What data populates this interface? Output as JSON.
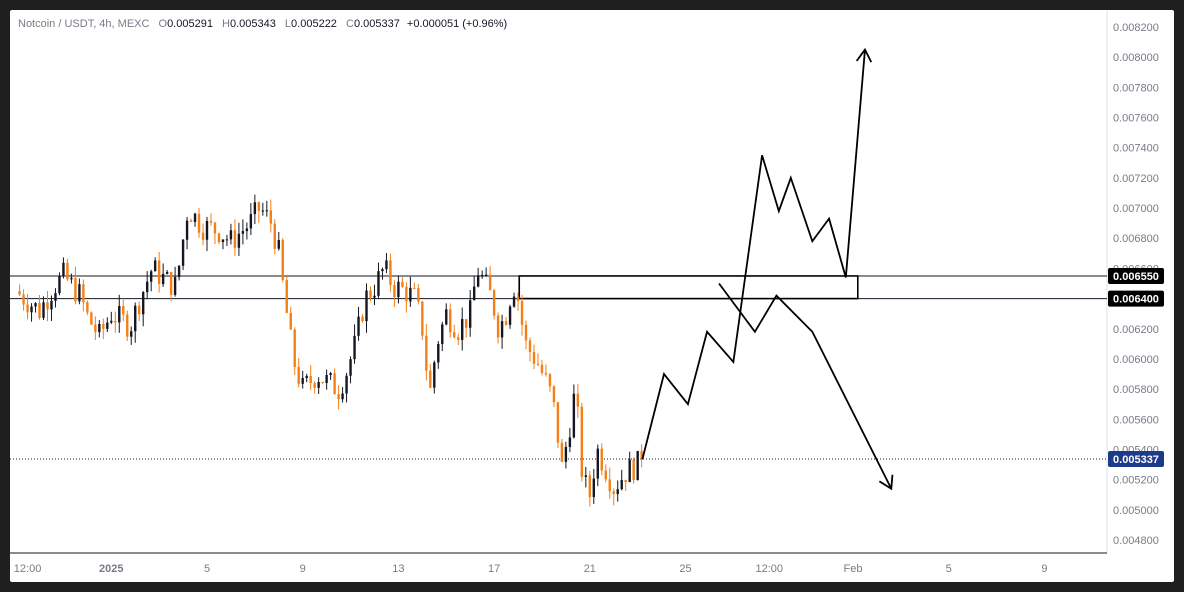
{
  "header": {
    "symbol_line": "Notcoin / USDT, 4h, MEXC",
    "ohlc": [
      {
        "key": "O",
        "value": "0.005291"
      },
      {
        "key": "H",
        "value": "0.005343"
      },
      {
        "key": "L",
        "value": "0.005222"
      },
      {
        "key": "C",
        "value": "0.005337"
      }
    ],
    "change": "+0.000051 (+0.96%)"
  },
  "colors": {
    "up": "#131722",
    "down": "#f57f17",
    "level_line": "#131722",
    "current_price_badge": "#1e3a8a",
    "level_badge": "#000000"
  },
  "chart_data": {
    "type": "candlestick",
    "y_axis_ticks": [
      "0.008200",
      "0.008000",
      "0.007800",
      "0.007600",
      "0.007400",
      "0.007200",
      "0.007000",
      "0.006800",
      "0.006600",
      "0.006400",
      "0.006200",
      "0.006000",
      "0.005800",
      "0.005600",
      "0.005400",
      "0.005200",
      "0.005000",
      "0.004800"
    ],
    "ylim": [
      0.0047,
      0.0083
    ],
    "x_axis_ticks": [
      {
        "label": "12:00",
        "day": 28.5
      },
      {
        "label": "2025",
        "day": 32
      },
      {
        "label": "5",
        "day": 36
      },
      {
        "label": "9",
        "day": 40
      },
      {
        "label": "13",
        "day": 44
      },
      {
        "label": "17",
        "day": 48
      },
      {
        "label": "21",
        "day": 52
      },
      {
        "label": "25",
        "day": 56
      },
      {
        "label": "12:00",
        "day": 59.5
      },
      {
        "label": "Feb",
        "day": 63
      },
      {
        "label": "5",
        "day": 67
      },
      {
        "label": "9",
        "day": 71
      }
    ],
    "xlim": [
      28,
      74
    ],
    "price_levels": [
      {
        "label": "0.006550",
        "value": 0.00655
      },
      {
        "label": "0.006400",
        "value": 0.0064
      }
    ],
    "current_price": {
      "label": "0.005337",
      "value": 0.005337
    },
    "zone": {
      "from_day": 49.05,
      "to_day": 63.2,
      "low": 0.0064,
      "high": 0.00655
    },
    "candle_anchors": [
      [
        28.0,
        0.00645
      ],
      [
        29.0,
        0.00632
      ],
      [
        29.6,
        0.00648
      ],
      [
        30.0,
        0.00655
      ],
      [
        30.7,
        0.00642
      ],
      [
        31.0,
        0.00628
      ],
      [
        31.5,
        0.00615
      ],
      [
        32.0,
        0.0063
      ],
      [
        32.8,
        0.00622
      ],
      [
        33.2,
        0.0064
      ],
      [
        33.7,
        0.0066
      ],
      [
        34.2,
        0.00653
      ],
      [
        34.7,
        0.00648
      ],
      [
        35.2,
        0.007
      ],
      [
        35.8,
        0.00688
      ],
      [
        36.5,
        0.00685
      ],
      [
        37.0,
        0.00678
      ],
      [
        37.8,
        0.0069
      ],
      [
        38.2,
        0.007
      ],
      [
        38.7,
        0.0069
      ],
      [
        39.0,
        0.0067
      ],
      [
        39.2,
        0.00645
      ],
      [
        39.6,
        0.006
      ],
      [
        40.0,
        0.0058
      ],
      [
        40.6,
        0.0059
      ],
      [
        41.0,
        0.00585
      ],
      [
        41.5,
        0.0058
      ],
      [
        41.8,
        0.0059
      ],
      [
        42.2,
        0.0061
      ],
      [
        42.6,
        0.0064
      ],
      [
        43.0,
        0.00648
      ],
      [
        43.4,
        0.0066
      ],
      [
        43.8,
        0.00648
      ],
      [
        44.3,
        0.00645
      ],
      [
        44.7,
        0.0064
      ],
      [
        45.0,
        0.0062
      ],
      [
        45.3,
        0.00575
      ],
      [
        45.6,
        0.0061
      ],
      [
        46.0,
        0.0063
      ],
      [
        46.5,
        0.0062
      ],
      [
        47.0,
        0.0063
      ],
      [
        47.3,
        0.0066
      ],
      [
        47.6,
        0.0065
      ],
      [
        47.9,
        0.0064
      ],
      [
        48.2,
        0.0062
      ],
      [
        48.5,
        0.0063
      ],
      [
        48.8,
        0.0065
      ],
      [
        49.0,
        0.0064
      ],
      [
        49.3,
        0.0061
      ],
      [
        49.8,
        0.00598
      ],
      [
        50.3,
        0.0058
      ],
      [
        50.6,
        0.0056
      ],
      [
        50.8,
        0.00525
      ],
      [
        51.1,
        0.0055
      ],
      [
        51.4,
        0.0058
      ],
      [
        51.7,
        0.0052
      ],
      [
        52.0,
        0.0051
      ],
      [
        52.3,
        0.0054
      ],
      [
        52.6,
        0.0053
      ],
      [
        53.0,
        0.00515
      ],
      [
        53.5,
        0.00525
      ],
      [
        54.0,
        0.0053
      ],
      [
        54.2,
        0.005337
      ]
    ],
    "projection_paths": [
      {
        "points": [
          [
            54.2,
            0.005337
          ],
          [
            55.1,
            0.0059
          ],
          [
            56.1,
            0.0057
          ],
          [
            56.9,
            0.00618
          ],
          [
            58.0,
            0.00598
          ],
          [
            59.2,
            0.00735
          ],
          [
            59.9,
            0.00698
          ],
          [
            60.4,
            0.0072
          ],
          [
            61.3,
            0.00678
          ],
          [
            62.0,
            0.00693
          ],
          [
            62.7,
            0.00654
          ],
          [
            63.5,
            0.00805
          ]
        ],
        "arrow": true
      },
      {
        "points": [
          [
            57.4,
            0.0065
          ],
          [
            58.9,
            0.00618
          ],
          [
            59.8,
            0.00642
          ],
          [
            61.3,
            0.00618
          ],
          [
            64.6,
            0.00514
          ]
        ],
        "arrow": true
      }
    ]
  }
}
